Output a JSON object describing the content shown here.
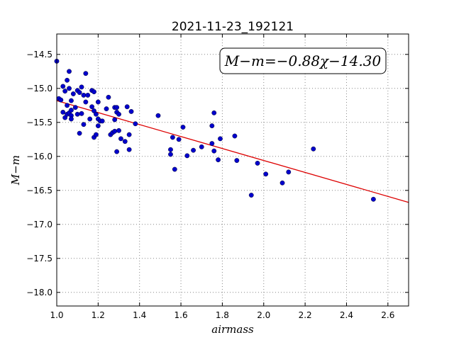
{
  "chart_data": {
    "type": "scatter",
    "title": "2021-11-23_192121",
    "xlabel": "airmass",
    "ylabel": "M−m",
    "xlim": [
      1.0,
      2.7
    ],
    "ylim": [
      -18.2,
      -14.2
    ],
    "y_inverted": true,
    "grid": true,
    "x_ticks": [
      1.0,
      1.2,
      1.4,
      1.6,
      1.8,
      2.0,
      2.2,
      2.4,
      2.6
    ],
    "x_tick_labels": [
      "1.0",
      "1.2",
      "1.4",
      "1.6",
      "1.8",
      "2.0",
      "2.2",
      "2.4",
      "2.6"
    ],
    "y_ticks": [
      -14.5,
      -15.0,
      -15.5,
      -16.0,
      -16.5,
      -17.0,
      -17.5,
      -18.0
    ],
    "y_tick_labels": [
      "−14.5",
      "−15.0",
      "−15.5",
      "−16.0",
      "−16.5",
      "−17.0",
      "−17.5",
      "−18.0"
    ],
    "annotation": "M−m=−0.88χ−14.30",
    "fit": {
      "slope": -0.88,
      "intercept": -14.3,
      "color": "#dd0000"
    },
    "marker_color": "#0000cc",
    "points": [
      [
        1.0,
        -14.6
      ],
      [
        1.01,
        -15.15
      ],
      [
        1.02,
        -15.17
      ],
      [
        1.03,
        -14.97
      ],
      [
        1.04,
        -15.04
      ],
      [
        1.03,
        -15.35
      ],
      [
        1.04,
        -15.43
      ],
      [
        1.05,
        -15.25
      ],
      [
        1.05,
        -15.38
      ],
      [
        1.05,
        -14.88
      ],
      [
        1.06,
        -14.75
      ],
      [
        1.06,
        -15.0
      ],
      [
        1.06,
        -15.36
      ],
      [
        1.07,
        -15.18
      ],
      [
        1.07,
        -15.32
      ],
      [
        1.07,
        -15.4
      ],
      [
        1.07,
        -15.45
      ],
      [
        1.08,
        -15.08
      ],
      [
        1.09,
        -15.28
      ],
      [
        1.1,
        -15.38
      ],
      [
        1.1,
        -15.03
      ],
      [
        1.11,
        -15.06
      ],
      [
        1.11,
        -15.66
      ],
      [
        1.12,
        -14.98
      ],
      [
        1.12,
        -15.37
      ],
      [
        1.13,
        -15.53
      ],
      [
        1.13,
        -15.1
      ],
      [
        1.14,
        -15.2
      ],
      [
        1.14,
        -14.78
      ],
      [
        1.15,
        -15.1
      ],
      [
        1.16,
        -15.45
      ],
      [
        1.17,
        -15.03
      ],
      [
        1.17,
        -15.27
      ],
      [
        1.18,
        -15.05
      ],
      [
        1.18,
        -15.33
      ],
      [
        1.18,
        -15.72
      ],
      [
        1.19,
        -15.38
      ],
      [
        1.19,
        -15.68
      ],
      [
        1.2,
        -15.2
      ],
      [
        1.2,
        -15.45
      ],
      [
        1.2,
        -15.55
      ],
      [
        1.21,
        -15.48
      ],
      [
        1.22,
        -15.48
      ],
      [
        1.24,
        -15.3
      ],
      [
        1.25,
        -15.13
      ],
      [
        1.26,
        -15.68
      ],
      [
        1.27,
        -15.65
      ],
      [
        1.28,
        -15.28
      ],
      [
        1.28,
        -15.46
      ],
      [
        1.28,
        -15.63
      ],
      [
        1.29,
        -15.28
      ],
      [
        1.29,
        -15.35
      ],
      [
        1.29,
        -15.93
      ],
      [
        1.3,
        -15.38
      ],
      [
        1.3,
        -15.62
      ],
      [
        1.31,
        -15.74
      ],
      [
        1.33,
        -15.78
      ],
      [
        1.34,
        -15.27
      ],
      [
        1.35,
        -15.68
      ],
      [
        1.35,
        -15.9
      ],
      [
        1.36,
        -15.34
      ],
      [
        1.38,
        -15.52
      ],
      [
        1.49,
        -15.4
      ],
      [
        1.55,
        -15.9
      ],
      [
        1.55,
        -15.97
      ],
      [
        1.56,
        -15.72
      ],
      [
        1.57,
        -16.19
      ],
      [
        1.59,
        -15.75
      ],
      [
        1.61,
        -15.57
      ],
      [
        1.63,
        -15.99
      ],
      [
        1.66,
        -15.91
      ],
      [
        1.7,
        -15.86
      ],
      [
        1.75,
        -15.55
      ],
      [
        1.75,
        -15.81
      ],
      [
        1.76,
        -15.36
      ],
      [
        1.76,
        -15.92
      ],
      [
        1.78,
        -16.05
      ],
      [
        1.79,
        -15.74
      ],
      [
        1.86,
        -15.7
      ],
      [
        1.87,
        -16.06
      ],
      [
        1.94,
        -16.57
      ],
      [
        1.97,
        -16.1
      ],
      [
        2.01,
        -16.26
      ],
      [
        2.09,
        -16.39
      ],
      [
        2.12,
        -16.23
      ],
      [
        2.24,
        -15.89
      ],
      [
        2.53,
        -16.63
      ]
    ]
  }
}
